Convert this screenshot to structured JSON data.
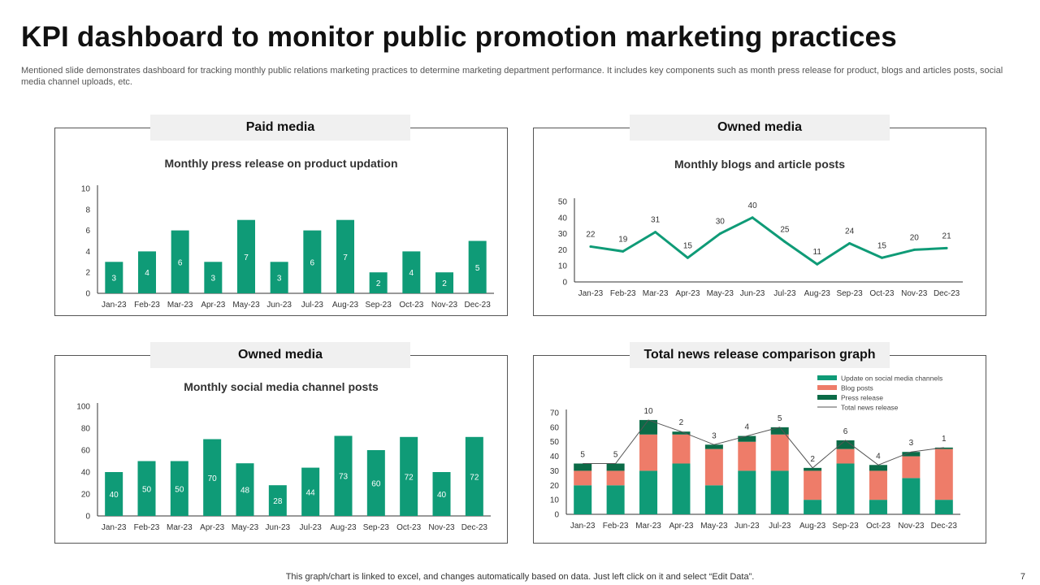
{
  "page": {
    "title": "KPI dashboard to monitor public promotion marketing practices",
    "subtitle": "Mentioned slide demonstrates dashboard for tracking monthly public relations marketing practices to determine marketing department performance. It includes key components such as month press release for product, blogs and articles posts, social media channel uploads, etc.",
    "footer": "This graph/chart is linked to excel, and changes automatically based on data. Just left click on it and select “Edit Data”.",
    "page_number": "7"
  },
  "colors": {
    "green": "#0f9b77",
    "salmon": "#ee7c69",
    "dark_green": "#0b6b47",
    "line": "#555555",
    "axis": "#333333"
  },
  "panels": [
    {
      "tab": "Paid media",
      "chart_title": "Monthly press release on product updation"
    },
    {
      "tab": "Owned media",
      "chart_title": "Monthly blogs and article posts"
    },
    {
      "tab": "Owned media",
      "chart_title": "Monthly social media channel posts"
    },
    {
      "tab": "Total news release comparison graph",
      "chart_title": ""
    }
  ],
  "chart_data": [
    {
      "type": "bar",
      "title": "Monthly press release on product updation",
      "categories": [
        "Jan-23",
        "Feb-23",
        "Mar-23",
        "Apr-23",
        "May-23",
        "Jun-23",
        "Jul-23",
        "Aug-23",
        "Sep-23",
        "Oct-23",
        "Nov-23",
        "Dec-23"
      ],
      "values": [
        3,
        4,
        6,
        3,
        7,
        3,
        6,
        7,
        2,
        4,
        2,
        5
      ],
      "ylim": [
        0,
        10
      ],
      "yticks": [
        0,
        2,
        4,
        6,
        8,
        10
      ]
    },
    {
      "type": "line",
      "title": "Monthly blogs and article posts",
      "categories": [
        "Jan-23",
        "Feb-23",
        "Mar-23",
        "Apr-23",
        "May-23",
        "Jun-23",
        "Jul-23",
        "Aug-23",
        "Sep-23",
        "Oct-23",
        "Nov-23",
        "Dec-23"
      ],
      "values": [
        22,
        19,
        31,
        15,
        30,
        40,
        25,
        11,
        24,
        15,
        20,
        21
      ],
      "ylim": [
        0,
        50
      ],
      "yticks": [
        0,
        10,
        20,
        30,
        40,
        50
      ]
    },
    {
      "type": "bar",
      "title": "Monthly social media channel posts",
      "categories": [
        "Jan-23",
        "Feb-23",
        "Mar-23",
        "Apr-23",
        "May-23",
        "Jun-23",
        "Jul-23",
        "Aug-23",
        "Sep-23",
        "Oct-23",
        "Nov-23",
        "Dec-23"
      ],
      "values": [
        40,
        50,
        50,
        70,
        48,
        28,
        44,
        73,
        60,
        72,
        40,
        72
      ],
      "ylim": [
        0,
        100
      ],
      "yticks": [
        0,
        20,
        40,
        60,
        80,
        100
      ]
    },
    {
      "type": "bar",
      "stacked": true,
      "title": "Total news release comparison graph",
      "categories": [
        "Jan-23",
        "Feb-23",
        "Mar-23",
        "Apr-23",
        "May-23",
        "Jun-23",
        "Jul-23",
        "Aug-23",
        "Sep-23",
        "Oct-23",
        "Nov-23",
        "Dec-23"
      ],
      "series": [
        {
          "name": "Update on social media channels",
          "values": [
            20,
            20,
            30,
            35,
            20,
            30,
            30,
            10,
            35,
            10,
            25,
            10
          ]
        },
        {
          "name": "Blog posts",
          "values": [
            10,
            10,
            25,
            20,
            25,
            20,
            25,
            20,
            10,
            20,
            15,
            35
          ]
        },
        {
          "name": "Press release",
          "values": [
            5,
            5,
            10,
            2,
            3,
            4,
            5,
            2,
            6,
            4,
            3,
            1
          ]
        }
      ],
      "line_series": {
        "name": "Total news release",
        "values": [
          35,
          35,
          65,
          57,
          48,
          54,
          60,
          32,
          51,
          34,
          43,
          46
        ]
      },
      "data_labels": [
        5,
        5,
        10,
        2,
        3,
        4,
        5,
        2,
        6,
        4,
        3,
        1
      ],
      "ylim": [
        0,
        70
      ],
      "yticks": [
        0,
        10,
        20,
        30,
        40,
        50,
        60,
        70
      ],
      "legend_position": "top-right"
    }
  ]
}
